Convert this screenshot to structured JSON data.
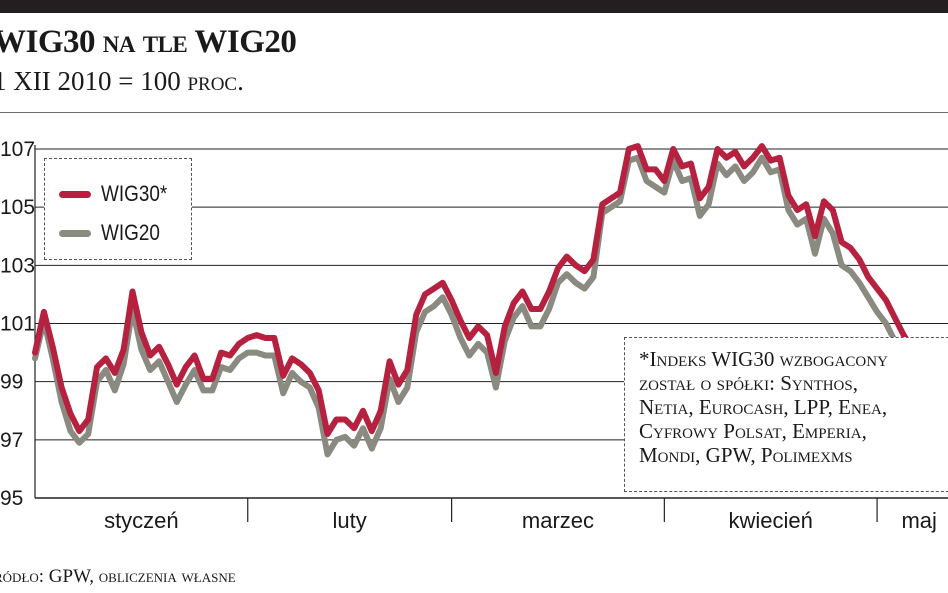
{
  "header": {
    "title_a": "WIG30",
    "title_b": "na tle",
    "title_c": "WIG20",
    "subtitle_a": "1 XII 2010 = 100",
    "subtitle_b": "proc."
  },
  "note": {
    "lines": [
      "*Indeks WIG30 wzbogacony",
      "został o spółki: Synthos,",
      "Netia, Eurocash, LPP, Enea,",
      "Cyfrowy Polsat, Emperia,",
      "Mondi, GPW, Polimexms"
    ]
  },
  "source": "ródło: GPW, obliczenia własne",
  "colors": {
    "wig30": "#b5213f",
    "wig20": "#8a8a80",
    "grid": "#222222",
    "topbar": "#231f20"
  },
  "chart_data": {
    "type": "line",
    "title": "WIG30 na tle WIG20",
    "subtitle": "1 XII 2010 = 100 proc.",
    "ylim": [
      95,
      107
    ],
    "y_ticks": [
      95,
      97,
      99,
      101,
      103,
      105,
      107
    ],
    "y_tick_labels": [
      "95",
      "97",
      "99",
      "101",
      "103",
      "105",
      "107"
    ],
    "grid": true,
    "legend_position": "top-left",
    "months": [
      "styczeń",
      "luty",
      "marzec",
      "kwiecień",
      "maj"
    ],
    "x_index_range": [
      0,
      103
    ],
    "month_boundaries": [
      24,
      47,
      71,
      95
    ],
    "series": [
      {
        "name": "WIG30*",
        "values": [
          100.0,
          101.4,
          100.2,
          98.8,
          97.9,
          97.3,
          97.7,
          99.5,
          99.8,
          99.3,
          100.1,
          102.1,
          100.7,
          99.9,
          100.2,
          99.6,
          98.9,
          99.5,
          99.9,
          99.1,
          99.1,
          100.0,
          99.9,
          100.3,
          100.5,
          100.6,
          100.5,
          100.5,
          99.2,
          99.8,
          99.6,
          99.3,
          98.7,
          97.2,
          97.7,
          97.7,
          97.4,
          98.0,
          97.3,
          98.0,
          99.7,
          98.9,
          99.4,
          101.3,
          102.0,
          102.2,
          102.4,
          101.8,
          101.1,
          100.5,
          100.9,
          100.6,
          99.3,
          100.9,
          101.7,
          102.1,
          101.5,
          101.5,
          102.1,
          102.9,
          103.3,
          103.0,
          102.8,
          103.2,
          105.1,
          105.3,
          105.5,
          107.0,
          107.1,
          106.3,
          106.3,
          105.9,
          107.0,
          106.4,
          106.5,
          105.3,
          105.7,
          107.0,
          106.7,
          106.9,
          106.4,
          106.7,
          107.1,
          106.6,
          106.7,
          105.4,
          104.9,
          105.1,
          104.0,
          105.2,
          104.9,
          103.8,
          103.6,
          103.2,
          102.6,
          102.2,
          101.8,
          101.2,
          100.6,
          100.1,
          99.7,
          99.3,
          98.9,
          98.6
        ]
      },
      {
        "name": "WIG20",
        "values": [
          99.8,
          101.1,
          99.8,
          98.3,
          97.3,
          96.9,
          97.2,
          99.0,
          99.4,
          98.7,
          99.6,
          101.5,
          100.1,
          99.4,
          99.7,
          99.0,
          98.3,
          98.9,
          99.4,
          98.7,
          98.7,
          99.5,
          99.4,
          99.8,
          100.0,
          100.0,
          99.9,
          99.9,
          98.6,
          99.3,
          99.0,
          98.8,
          98.1,
          96.5,
          97.0,
          97.1,
          96.8,
          97.4,
          96.7,
          97.4,
          99.1,
          98.3,
          98.8,
          100.7,
          101.4,
          101.6,
          101.9,
          101.3,
          100.5,
          99.9,
          100.3,
          100.0,
          98.8,
          100.4,
          101.2,
          101.6,
          100.9,
          100.9,
          101.5,
          102.4,
          102.7,
          102.4,
          102.2,
          102.6,
          104.8,
          105.0,
          105.2,
          106.6,
          106.7,
          105.9,
          105.7,
          105.5,
          106.6,
          105.9,
          106.0,
          104.7,
          105.1,
          106.5,
          106.1,
          106.4,
          105.9,
          106.2,
          106.7,
          106.2,
          106.3,
          104.9,
          104.4,
          104.6,
          103.4,
          104.6,
          104.1,
          103.0,
          102.8,
          102.4,
          101.9,
          101.4,
          101.0,
          100.4,
          99.8,
          99.4,
          99.0,
          98.6,
          98.2,
          97.9
        ]
      }
    ]
  }
}
